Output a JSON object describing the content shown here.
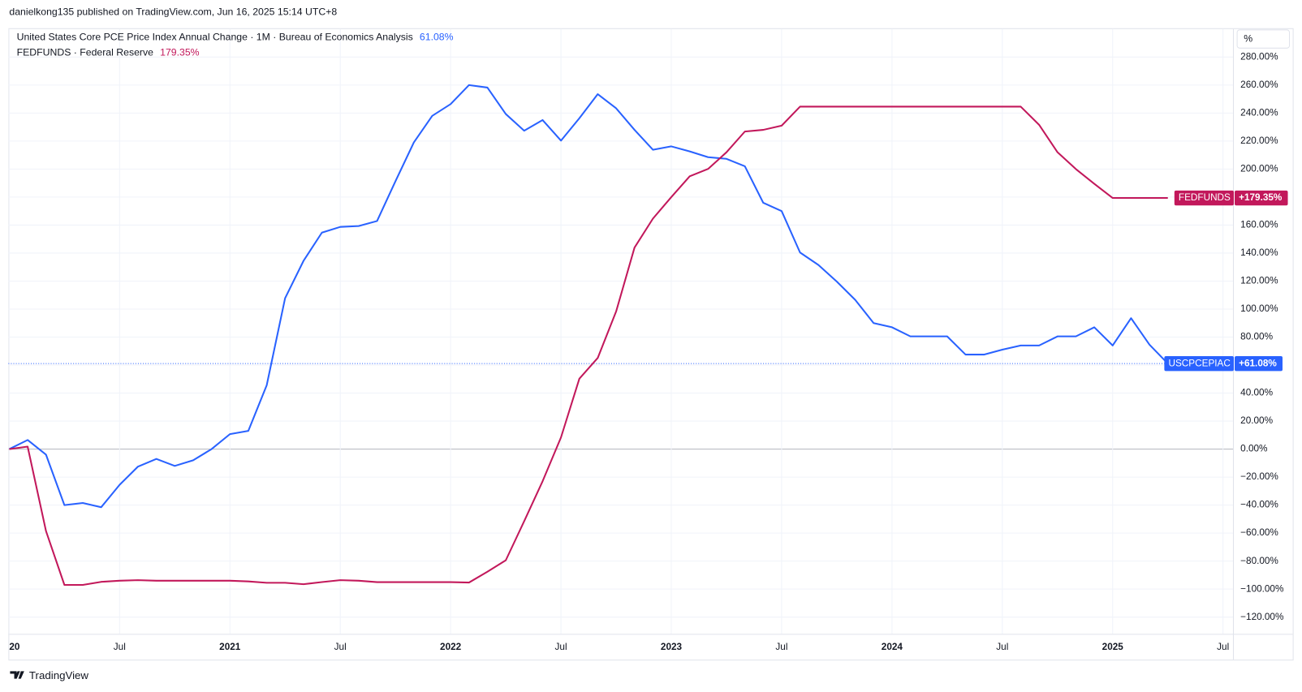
{
  "header": "danielkong135 published on TradingView.com, Jun 16, 2025 15:14 UTC+8",
  "footer": "TradingView",
  "chart_data": {
    "type": "line",
    "scale_button": "%",
    "x": [
      "2020-01",
      "2020-02",
      "2020-03",
      "2020-04",
      "2020-05",
      "2020-06",
      "2020-07",
      "2020-08",
      "2020-09",
      "2020-10",
      "2020-11",
      "2020-12",
      "2021-01",
      "2021-02",
      "2021-03",
      "2021-04",
      "2021-05",
      "2021-06",
      "2021-07",
      "2021-08",
      "2021-09",
      "2021-10",
      "2021-11",
      "2021-12",
      "2022-01",
      "2022-02",
      "2022-03",
      "2022-04",
      "2022-05",
      "2022-06",
      "2022-07",
      "2022-08",
      "2022-09",
      "2022-10",
      "2022-11",
      "2022-12",
      "2023-01",
      "2023-02",
      "2023-03",
      "2023-04",
      "2023-05",
      "2023-06",
      "2023-07",
      "2023-08",
      "2023-09",
      "2023-10",
      "2023-11",
      "2023-12",
      "2024-01",
      "2024-02",
      "2024-03",
      "2024-04",
      "2024-05",
      "2024-06",
      "2024-07",
      "2024-08",
      "2024-09",
      "2024-10",
      "2024-11",
      "2024-12",
      "2025-01",
      "2025-02",
      "2025-03",
      "2025-04"
    ],
    "xlim": [
      "2020-01",
      "2025-07"
    ],
    "xticks": [
      {
        "value": "2020-01",
        "label": "20"
      },
      {
        "value": "2020-07",
        "label": "Jul"
      },
      {
        "value": "2021-01",
        "label": "2021"
      },
      {
        "value": "2021-07",
        "label": "Jul"
      },
      {
        "value": "2022-01",
        "label": "2022"
      },
      {
        "value": "2022-07",
        "label": "Jul"
      },
      {
        "value": "2023-01",
        "label": "2023"
      },
      {
        "value": "2023-07",
        "label": "Jul"
      },
      {
        "value": "2024-01",
        "label": "2024"
      },
      {
        "value": "2024-07",
        "label": "Jul"
      },
      {
        "value": "2025-01",
        "label": "2025"
      },
      {
        "value": "2025-07",
        "label": "Jul"
      }
    ],
    "ylim": [
      -132,
      300
    ],
    "yticks": [
      {
        "value": -120,
        "label": "−120.00%"
      },
      {
        "value": -100,
        "label": "−100.00%"
      },
      {
        "value": -80,
        "label": "−80.00%"
      },
      {
        "value": -60,
        "label": "−60.00%"
      },
      {
        "value": -40,
        "label": "−40.00%"
      },
      {
        "value": -20,
        "label": "−20.00%"
      },
      {
        "value": 0,
        "label": "0.00%"
      },
      {
        "value": 20,
        "label": "20.00%"
      },
      {
        "value": 40,
        "label": "40.00%"
      },
      {
        "value": 60,
        "label": "60.00%"
      },
      {
        "value": 80,
        "label": "80.00%"
      },
      {
        "value": 100,
        "label": "100.00%"
      },
      {
        "value": 120,
        "label": "120.00%"
      },
      {
        "value": 140,
        "label": "140.00%"
      },
      {
        "value": 160,
        "label": "160.00%"
      },
      {
        "value": 180,
        "label": "180.00%"
      },
      {
        "value": 200,
        "label": "200.00%"
      },
      {
        "value": 220,
        "label": "220.00%"
      },
      {
        "value": 240,
        "label": "240.00%"
      },
      {
        "value": 260,
        "label": "260.00%"
      },
      {
        "value": 280,
        "label": "280.00%"
      }
    ],
    "grid": true,
    "series": [
      {
        "name": "United States Core PCE Price Index Annual Change · 1M · Bureau of Economics Analysis",
        "ticker": "USCPCEPIAC",
        "color": "#2962ff",
        "last_label": "61.08%",
        "badge_label": "+61.08%",
        "last_line": true,
        "values": [
          0,
          6.5,
          -4,
          -40,
          -38.5,
          -41.5,
          -25.5,
          -12.5,
          -7,
          -12,
          -8,
          0,
          10.7,
          13,
          45.6,
          107.8,
          134.4,
          154.6,
          158.7,
          159.3,
          162.9,
          191.3,
          219,
          238,
          246.4,
          260,
          258.2,
          239.3,
          227.4,
          235,
          220.3,
          236.3,
          253.5,
          243.4,
          228,
          213.8,
          216.2,
          212.6,
          208.5,
          207.3,
          202,
          175.9,
          170,
          140.4,
          131.5,
          119.6,
          106.6,
          90,
          87,
          80.5,
          80.5,
          80.5,
          67.5,
          67.5,
          71,
          74,
          74,
          80.5,
          80.5,
          87,
          74,
          93.5,
          74.6,
          61.08
        ]
      },
      {
        "name": "FEDFUNDS · Federal Reserve",
        "ticker": "FEDFUNDS",
        "color": "#c2185b",
        "last_label": "179.35%",
        "badge_label": "+179.35%",
        "last_line": false,
        "values": [
          0,
          1.8,
          -58.6,
          -97,
          -97,
          -94.8,
          -94,
          -93.6,
          -94,
          -94,
          -94,
          -94,
          -94,
          -94.5,
          -95.5,
          -95.5,
          -96.5,
          -95,
          -93.6,
          -94,
          -95,
          -95,
          -95,
          -95,
          -95,
          -95.3,
          -87.6,
          -79.4,
          -51.5,
          -23,
          8.3,
          50.3,
          65.1,
          98.3,
          143.9,
          164.6,
          180,
          194.8,
          200.1,
          212,
          226.8,
          228,
          231,
          244.6,
          244.6,
          244.6,
          244.6,
          244.6,
          244.6,
          244.6,
          244.6,
          244.6,
          244.6,
          244.6,
          244.6,
          244.6,
          231.6,
          212,
          200,
          189.5,
          179.35,
          179.35,
          179.35,
          179.35
        ]
      }
    ]
  }
}
